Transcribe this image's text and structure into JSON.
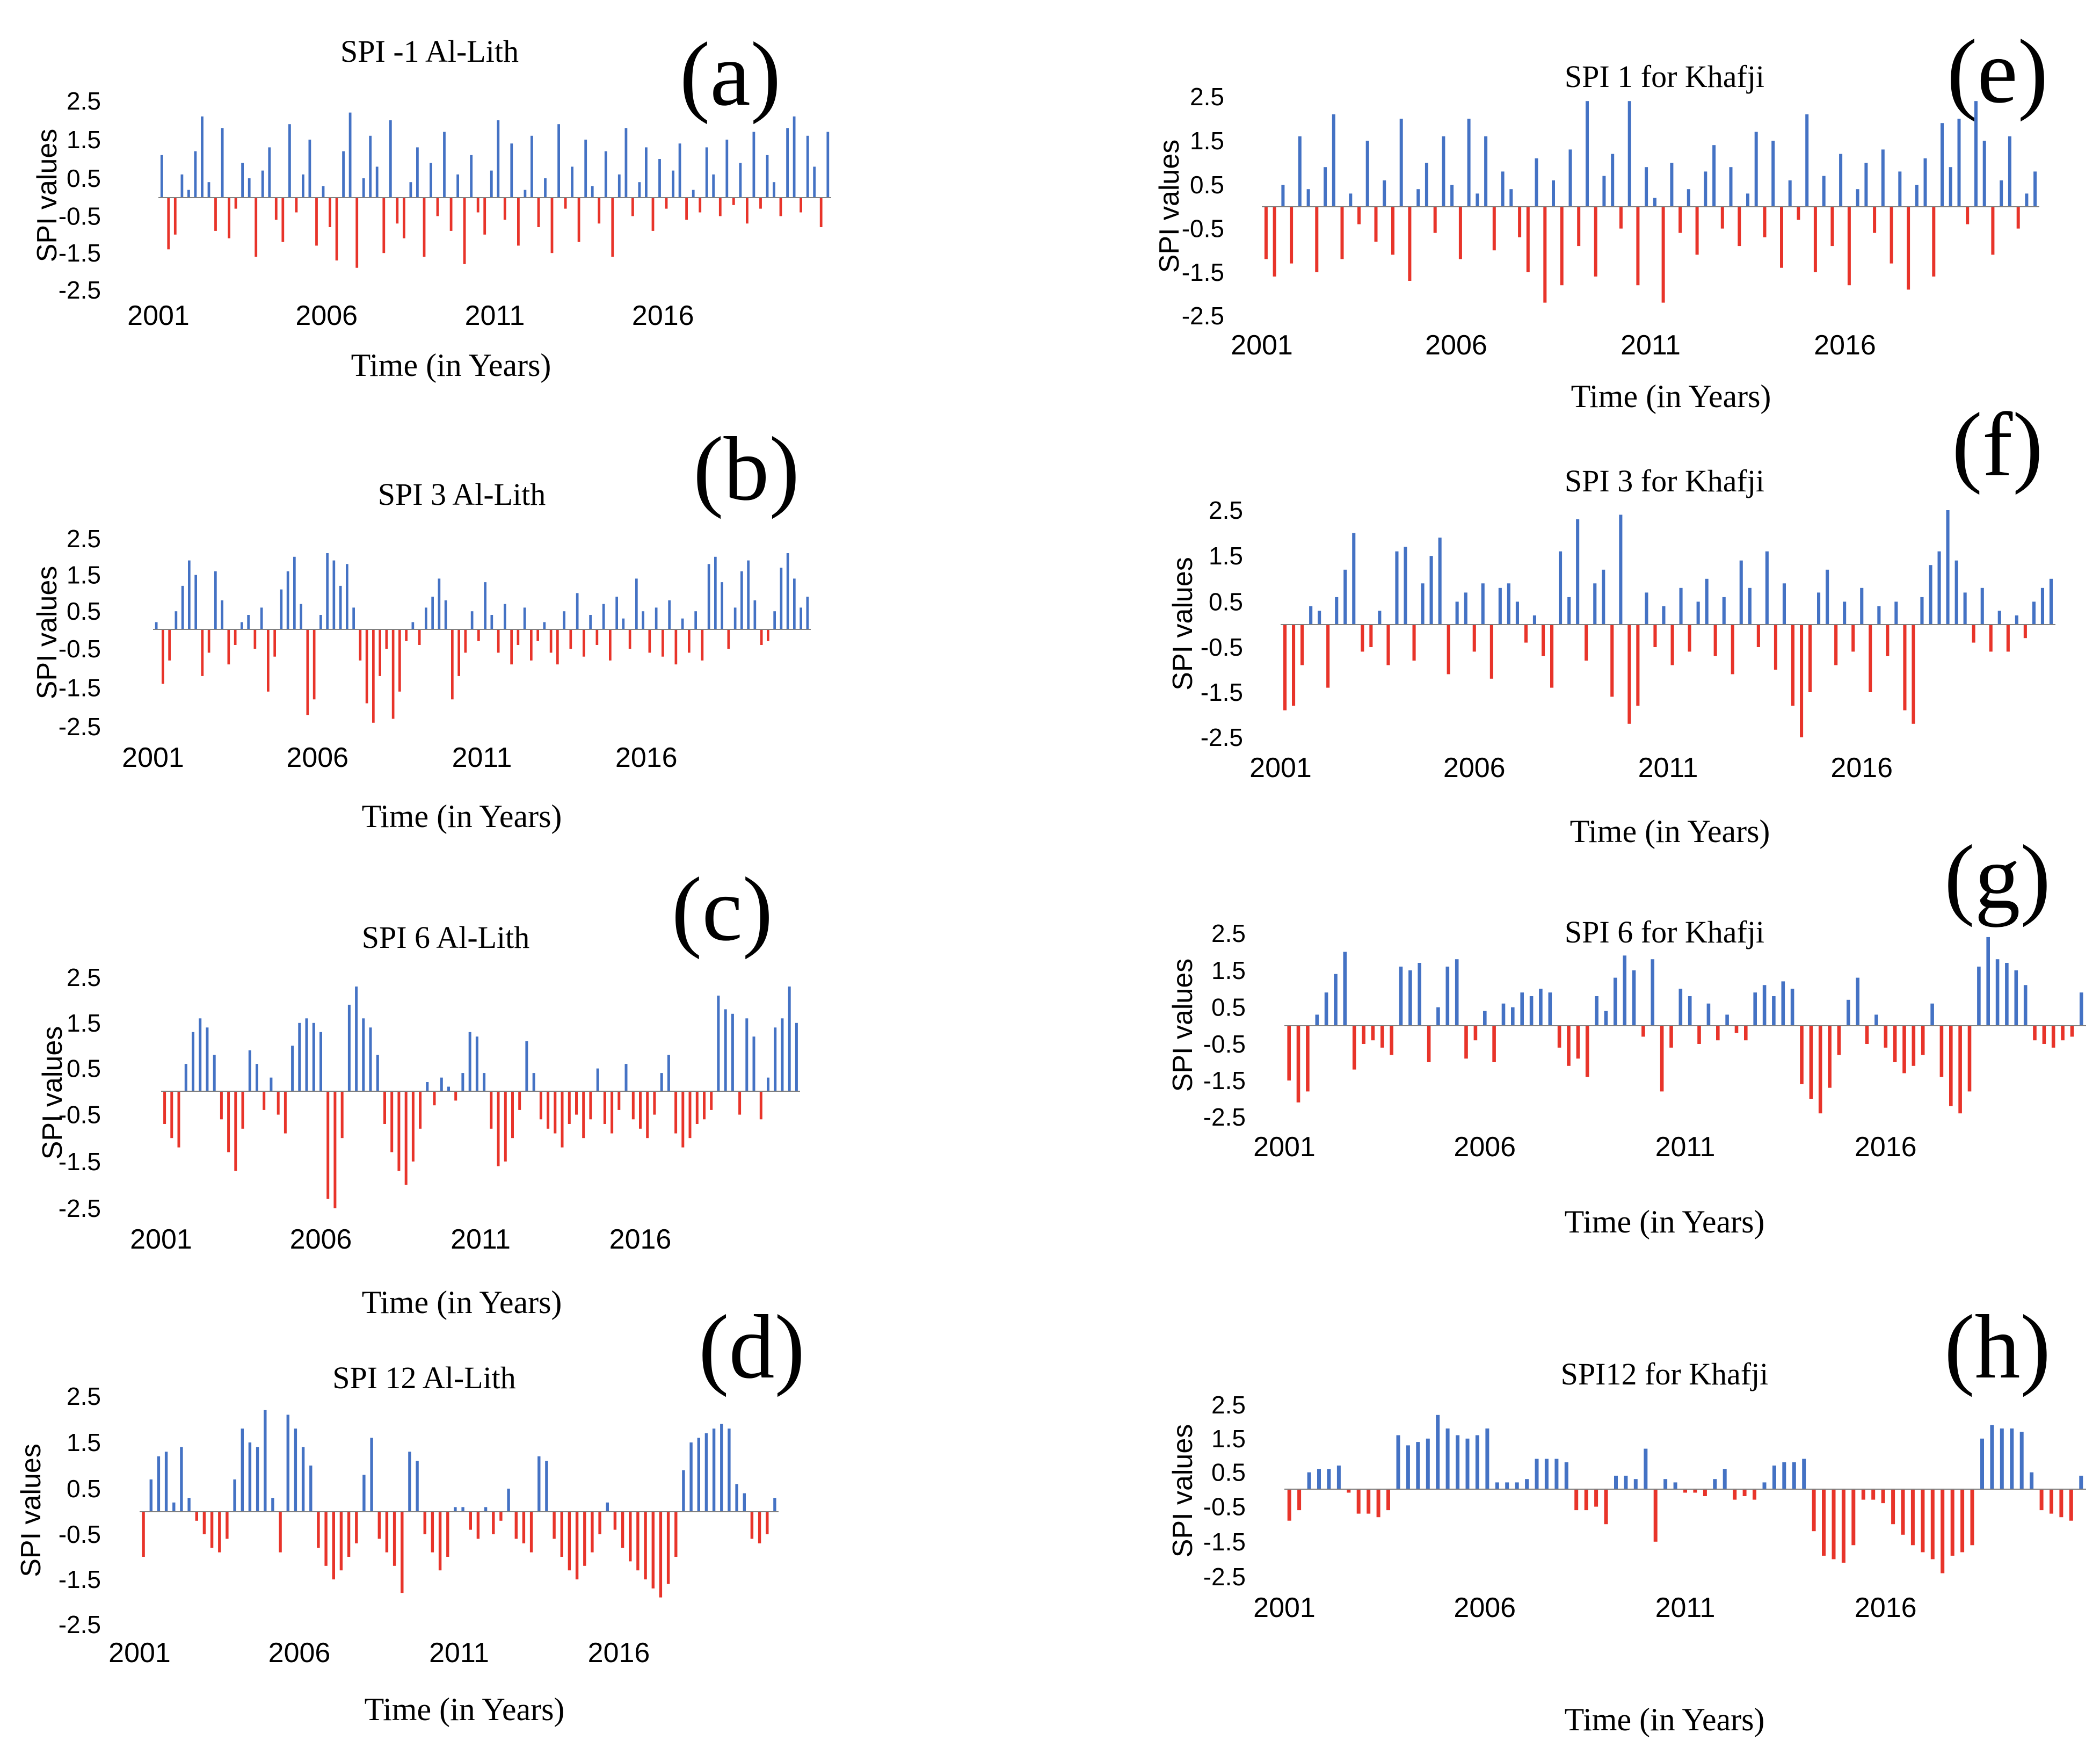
{
  "figure": {
    "colors": {
      "positive": "#4472c4",
      "negative": "#e8342a",
      "axis": "#7f7f7f"
    }
  },
  "chart_data": [
    {
      "id": "a",
      "panel_label": "(a)",
      "type": "bar",
      "index": "SPI-1",
      "title": "SPI -1 Al-Lith",
      "xlabel": "Time (in Years)",
      "ylabel": "SPI values",
      "ylim": [
        -2.5,
        2.5
      ],
      "y_ticks": [
        "2.5",
        "1.5",
        "0.5",
        "-0.5",
        "-1.5",
        "-2.5"
      ],
      "x_ticks": [
        "2001",
        "2006",
        "2011",
        "2016"
      ],
      "x_start": 2001,
      "x_end": 2021,
      "values": [
        1.1,
        -1.4,
        -1.0,
        0.6,
        0.2,
        1.2,
        2.1,
        0.4,
        -0.9,
        1.8,
        -1.1,
        -0.3,
        0.9,
        0.5,
        -1.6,
        0.7,
        1.3,
        -0.6,
        -1.2,
        1.9,
        -0.4,
        0.6,
        1.5,
        -1.3,
        0.3,
        -0.8,
        -1.7,
        1.2,
        2.2,
        -1.9,
        0.5,
        1.6,
        0.8,
        -1.5,
        2.0,
        -0.7,
        -1.1,
        0.4,
        1.3,
        -1.6,
        0.9,
        -0.5,
        1.7,
        -0.9,
        0.6,
        -1.8,
        1.1,
        -0.4,
        -1.0,
        0.7,
        2.0,
        -0.6,
        1.4,
        -1.3,
        0.2,
        1.6,
        -0.8,
        0.5,
        -1.5,
        1.9,
        -0.3,
        0.8,
        -1.2,
        1.5,
        0.3,
        -0.7,
        1.2,
        -1.6,
        0.6,
        1.8,
        -0.5,
        0.4,
        1.3,
        -0.9,
        1.0,
        -0.3,
        0.7,
        1.4,
        -0.6,
        0.2,
        -0.4,
        1.3,
        0.6,
        -0.5,
        1.5,
        -0.2,
        0.9,
        -0.7,
        1.7,
        -0.3,
        1.1,
        0.4,
        -0.5,
        1.8,
        2.1,
        -0.4,
        1.6,
        0.8,
        -0.8,
        1.7
      ]
    },
    {
      "id": "b",
      "panel_label": "(b)",
      "type": "bar",
      "index": "SPI-3",
      "title": "SPI 3 Al-Lith",
      "xlabel": "Time (in Years)",
      "ylabel": "SPI values",
      "ylim": [
        -2.5,
        2.5
      ],
      "y_ticks": [
        "2.5",
        "1.5",
        "0.5",
        "-0.5",
        "-1.5",
        "-2.5"
      ],
      "x_ticks": [
        "2001",
        "2006",
        "2011",
        "2016"
      ],
      "x_start": 2001,
      "x_end": 2021,
      "values": [
        0.2,
        -1.4,
        -0.8,
        0.5,
        1.2,
        1.9,
        1.5,
        -1.2,
        -0.6,
        1.6,
        0.8,
        -0.9,
        -0.4,
        0.2,
        0.4,
        -0.5,
        0.6,
        -1.6,
        -0.7,
        1.1,
        1.6,
        2.0,
        0.7,
        -2.2,
        -1.8,
        0.4,
        2.1,
        1.9,
        1.2,
        1.8,
        0.6,
        -0.8,
        -1.9,
        -2.4,
        -1.2,
        -0.5,
        -2.3,
        -1.6,
        -0.3,
        0.2,
        -0.4,
        0.6,
        0.9,
        1.4,
        0.8,
        -1.8,
        -1.2,
        -0.6,
        0.5,
        -0.3,
        1.3,
        0.4,
        -0.6,
        0.7,
        -0.9,
        -0.4,
        0.6,
        -0.8,
        -0.3,
        0.2,
        -0.6,
        -0.9,
        0.5,
        -0.5,
        1.0,
        -0.7,
        0.4,
        -0.4,
        0.7,
        -0.8,
        0.9,
        0.3,
        -0.5,
        1.4,
        0.5,
        -0.6,
        0.6,
        -0.7,
        0.8,
        -0.9,
        0.3,
        -0.6,
        0.5,
        -0.8,
        1.8,
        2.0,
        1.3,
        -0.5,
        0.6,
        1.6,
        1.9,
        0.8,
        -0.4,
        -0.3,
        0.5,
        1.7,
        2.1,
        1.4,
        0.6,
        0.9
      ]
    },
    {
      "id": "c",
      "panel_label": "(c)",
      "type": "bar",
      "index": "SPI-6",
      "title": "SPI 6 Al-Lith",
      "xlabel": "Time (in Years)",
      "ylabel": "SPI values",
      "ylim": [
        -2.5,
        2.5
      ],
      "y_ticks": [
        "2.5",
        "1.5",
        "0.5",
        "-0.5",
        "-1.5",
        "-2.5"
      ],
      "x_ticks": [
        "2001",
        "2006",
        "2011",
        "2016"
      ],
      "x_start": 2001,
      "x_end": 2021,
      "values": [
        -0.7,
        -1.0,
        -1.2,
        0.6,
        1.3,
        1.6,
        1.4,
        0.8,
        -0.6,
        -1.3,
        -1.7,
        -0.8,
        0.9,
        0.6,
        -0.4,
        0.3,
        -0.5,
        -0.9,
        1.0,
        1.5,
        1.6,
        1.5,
        1.3,
        -2.3,
        -2.5,
        -1.0,
        1.9,
        2.3,
        1.6,
        1.4,
        0.8,
        -0.7,
        -1.3,
        -1.7,
        -2.0,
        -1.5,
        -0.8,
        0.2,
        -0.3,
        0.3,
        0.1,
        -0.2,
        0.4,
        1.3,
        1.2,
        0.4,
        -0.8,
        -1.6,
        -1.5,
        -1.0,
        -0.4,
        1.1,
        0.4,
        -0.6,
        -0.8,
        -0.9,
        -1.2,
        -0.7,
        -0.5,
        -1.0,
        -0.6,
        0.5,
        -0.7,
        -0.9,
        -0.4,
        0.6,
        -0.6,
        -0.8,
        -1.0,
        -0.5,
        0.4,
        0.8,
        -0.9,
        -1.2,
        -1.0,
        -0.7,
        -0.6,
        -0.4,
        2.1,
        1.8,
        1.7,
        -0.5,
        1.6,
        1.2,
        -0.6,
        0.3,
        1.4,
        1.6,
        2.3,
        1.5
      ]
    },
    {
      "id": "d",
      "panel_label": "(d)",
      "type": "bar",
      "index": "SPI-12",
      "title": "SPI 12  Al-Lith",
      "xlabel": "Time (in Years)",
      "ylabel": "SPI values",
      "ylim": [
        -2.5,
        2.5
      ],
      "y_ticks": [
        "2.5",
        "1.5",
        "0.5",
        "-0.5",
        "-1.5",
        "-2.5"
      ],
      "x_ticks": [
        "2001",
        "2006",
        "2011",
        "2016"
      ],
      "x_start": 2001,
      "x_end": 2021,
      "values": [
        -1.0,
        0.7,
        1.2,
        1.3,
        0.2,
        1.4,
        0.3,
        -0.2,
        -0.5,
        -0.8,
        -0.9,
        -0.6,
        0.7,
        1.8,
        1.5,
        1.4,
        2.2,
        0.3,
        -0.9,
        2.1,
        1.8,
        1.4,
        1.0,
        -0.8,
        -1.2,
        -1.5,
        -1.3,
        -1.0,
        -0.7,
        0.8,
        1.6,
        -0.6,
        -0.9,
        -1.2,
        -1.8,
        1.3,
        1.1,
        -0.5,
        -0.9,
        -1.3,
        -1.0,
        0.1,
        0.1,
        -0.4,
        -0.6,
        0.1,
        -0.5,
        -0.2,
        0.5,
        -0.6,
        -0.7,
        -0.9,
        1.2,
        1.1,
        -0.6,
        -1.0,
        -1.3,
        -1.5,
        -1.2,
        -0.9,
        -0.5,
        0.2,
        -0.4,
        -0.8,
        -1.1,
        -1.3,
        -1.5,
        -1.7,
        -1.9,
        -1.6,
        -1.0,
        0.9,
        1.5,
        1.6,
        1.7,
        1.8,
        1.9,
        1.8,
        0.6,
        0.4,
        -0.6,
        -0.7,
        -0.5,
        0.3
      ]
    },
    {
      "id": "e",
      "panel_label": "(e)",
      "type": "bar",
      "index": "SPI-1",
      "title": "SPI 1 for Khafji",
      "xlabel": "Time (in Years)",
      "ylabel": "SPI values",
      "ylim": [
        -2.5,
        2.5
      ],
      "y_ticks": [
        "2.5",
        "1.5",
        "0.5",
        "-0.5",
        "-1.5",
        "-2.5"
      ],
      "x_ticks": [
        "2001",
        "2006",
        "2011",
        "2016"
      ],
      "x_start": 2001,
      "x_end": 2021,
      "values": [
        -1.2,
        -1.6,
        0.5,
        -1.3,
        1.6,
        0.4,
        -1.5,
        0.9,
        2.1,
        -1.2,
        0.3,
        -0.4,
        1.5,
        -0.8,
        0.6,
        -1.1,
        2.0,
        -1.7,
        0.4,
        1.0,
        -0.6,
        1.6,
        0.5,
        -1.2,
        2.0,
        0.3,
        1.6,
        -1.0,
        0.8,
        0.4,
        -0.7,
        -1.5,
        1.1,
        -2.2,
        0.6,
        -1.8,
        1.3,
        -0.9,
        2.4,
        -1.6,
        0.7,
        1.2,
        -0.5,
        2.4,
        -1.8,
        0.9,
        0.2,
        -2.2,
        1.0,
        -0.6,
        0.4,
        -1.1,
        0.8,
        1.4,
        -0.5,
        0.9,
        -0.9,
        0.3,
        1.7,
        -0.7,
        1.5,
        -1.4,
        0.6,
        -0.3,
        2.1,
        -1.5,
        0.7,
        -0.9,
        1.2,
        -1.8,
        0.4,
        1.0,
        -0.6,
        1.3,
        -1.3,
        0.8,
        -1.9,
        0.5,
        1.1,
        -1.6,
        1.9,
        0.9,
        2.0,
        -0.4,
        2.4,
        1.5,
        -1.1,
        0.6,
        1.6,
        -0.5,
        0.3,
        0.8
      ]
    },
    {
      "id": "f",
      "panel_label": "(f)",
      "type": "bar",
      "index": "SPI-3",
      "title": "SPI 3 for Khafji",
      "xlabel": "Time (in Years)",
      "ylabel": "SPI values",
      "ylim": [
        -2.5,
        2.5
      ],
      "y_ticks": [
        "2.5",
        "1.5",
        "0.5",
        "-0.5",
        "-1.5",
        "-2.5"
      ],
      "x_ticks": [
        "2001",
        "2006",
        "2011",
        "2016"
      ],
      "x_start": 2001,
      "x_end": 2021,
      "values": [
        -1.9,
        -1.8,
        -0.9,
        0.4,
        0.3,
        -1.4,
        0.6,
        1.2,
        2.0,
        -0.6,
        -0.5,
        0.3,
        -0.9,
        1.6,
        1.7,
        -0.8,
        0.9,
        1.5,
        1.9,
        -1.1,
        0.5,
        0.7,
        -0.6,
        0.9,
        -1.2,
        0.8,
        0.9,
        0.5,
        -0.4,
        0.2,
        -0.7,
        -1.4,
        1.6,
        0.6,
        2.3,
        -0.8,
        0.9,
        1.2,
        -1.6,
        2.4,
        -2.2,
        -1.8,
        0.7,
        -0.5,
        0.4,
        -0.9,
        0.8,
        -0.6,
        0.5,
        1.0,
        -0.7,
        0.6,
        -1.1,
        1.4,
        0.8,
        -0.5,
        1.6,
        -1.0,
        0.9,
        -1.8,
        -2.5,
        -1.5,
        0.7,
        1.2,
        -0.9,
        0.5,
        -0.6,
        0.8,
        -1.5,
        0.4,
        -0.7,
        0.5,
        -1.9,
        -2.2,
        0.6,
        1.3,
        1.6,
        2.5,
        1.4,
        0.7,
        -0.4,
        0.8,
        -0.6,
        0.3,
        -0.6,
        0.2,
        -0.3,
        0.5,
        0.8,
        1.0
      ]
    },
    {
      "id": "g",
      "panel_label": "(g)",
      "type": "bar",
      "index": "SPI-6",
      "title": "SPI 6 for Khafji",
      "xlabel": "Time (in Years)",
      "ylabel": "SPI values",
      "ylim": [
        -2.5,
        2.5
      ],
      "y_ticks": [
        "2.5",
        "1.5",
        "0.5",
        "-0.5",
        "-1.5",
        "-2.5"
      ],
      "x_ticks": [
        "2001",
        "2006",
        "2011",
        "2016"
      ],
      "x_start": 2001,
      "x_end": 2021,
      "values": [
        -1.5,
        -2.1,
        -1.8,
        0.3,
        0.9,
        1.4,
        2.0,
        -1.2,
        -0.5,
        -0.4,
        -0.6,
        -0.8,
        1.6,
        1.5,
        1.7,
        -1.0,
        0.5,
        1.6,
        1.8,
        -0.9,
        -0.4,
        0.4,
        -1.0,
        0.6,
        0.5,
        0.9,
        0.8,
        1.0,
        0.9,
        -0.6,
        -1.1,
        -0.9,
        -1.4,
        0.8,
        0.4,
        1.3,
        1.9,
        1.5,
        -0.3,
        1.8,
        -1.8,
        -0.6,
        1.0,
        0.8,
        -0.5,
        0.6,
        -0.4,
        0.3,
        -0.2,
        -0.4,
        0.9,
        1.1,
        0.8,
        1.2,
        1.0,
        -1.6,
        -2.0,
        -2.4,
        -1.7,
        -0.8,
        0.7,
        1.3,
        -0.5,
        0.3,
        -0.6,
        -1.0,
        -1.3,
        -1.1,
        -0.8,
        0.6,
        -1.4,
        -2.2,
        -2.4,
        -1.8,
        1.6,
        2.4,
        1.8,
        1.7,
        1.5,
        1.1,
        -0.4,
        -0.5,
        -0.6,
        -0.4,
        -0.3,
        0.9
      ]
    },
    {
      "id": "h",
      "panel_label": "(h)",
      "type": "bar",
      "index": "SPI-12",
      "title": "SPI12 for Khafji",
      "xlabel": "Time (in Years)",
      "ylabel": "SPI values",
      "ylim": [
        -2.5,
        2.5
      ],
      "y_ticks": [
        "2.5",
        "1.5",
        "0.5",
        "-0.5",
        "-1.5",
        "-2.5"
      ],
      "x_ticks": [
        "2001",
        "2006",
        "2011",
        "2016"
      ],
      "x_start": 2001,
      "x_end": 2021,
      "values": [
        -0.9,
        -0.6,
        0.5,
        0.6,
        0.6,
        0.7,
        -0.1,
        -0.7,
        -0.7,
        -0.8,
        -0.6,
        1.6,
        1.3,
        1.4,
        1.5,
        2.2,
        1.8,
        1.6,
        1.5,
        1.6,
        1.8,
        0.2,
        0.2,
        0.2,
        0.3,
        0.9,
        0.9,
        0.9,
        0.8,
        -0.6,
        -0.6,
        -0.5,
        -1.0,
        0.4,
        0.4,
        0.3,
        1.2,
        -1.5,
        0.3,
        0.2,
        -0.1,
        -0.1,
        -0.2,
        0.3,
        0.6,
        -0.3,
        -0.2,
        -0.3,
        0.2,
        0.7,
        0.8,
        0.8,
        0.9,
        -1.2,
        -1.9,
        -2.0,
        -2.1,
        -1.6,
        -0.3,
        -0.3,
        -0.4,
        -1.0,
        -1.3,
        -1.6,
        -1.8,
        -2.0,
        -2.4,
        -1.9,
        -1.8,
        -1.6,
        1.5,
        1.9,
        1.8,
        1.8,
        1.7,
        0.5,
        -0.6,
        -0.7,
        -0.8,
        -0.9,
        0.4
      ]
    }
  ]
}
